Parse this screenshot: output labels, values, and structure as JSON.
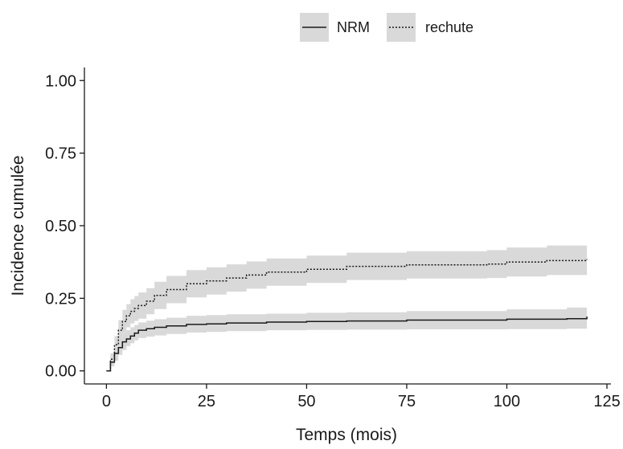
{
  "chart_data": {
    "type": "line",
    "title": "",
    "xlabel": "Temps (mois)",
    "ylabel": "Incidence cumulée",
    "xlim": [
      -5.5,
      126
    ],
    "ylim": [
      -0.045,
      1.045
    ],
    "x_ticks": [
      0,
      25,
      50,
      75,
      100,
      125
    ],
    "x_tick_labels": [
      "0",
      "25",
      "50",
      "75",
      "100",
      "125"
    ],
    "y_ticks": [
      0,
      0.25,
      0.5,
      0.75,
      1.0
    ],
    "y_tick_labels": [
      "0.00",
      "0.25",
      "0.50",
      "0.75",
      "1.00"
    ],
    "grid": false,
    "legend_position": "top",
    "band_color": "#d9d9d9",
    "line_color": "#1a1a1a",
    "series": [
      {
        "name": "NRM",
        "line_style": "solid",
        "x": [
          0,
          1,
          2,
          3,
          4,
          5,
          6,
          7,
          8,
          10,
          12,
          15,
          20,
          25,
          30,
          40,
          50,
          60,
          75,
          100,
          115,
          120
        ],
        "y": [
          0.0,
          0.03,
          0.06,
          0.08,
          0.1,
          0.11,
          0.12,
          0.13,
          0.14,
          0.145,
          0.15,
          0.155,
          0.16,
          0.162,
          0.165,
          0.168,
          0.17,
          0.172,
          0.175,
          0.178,
          0.18,
          0.187
        ],
        "lower": [
          0.0,
          0.015,
          0.035,
          0.055,
          0.072,
          0.085,
          0.095,
          0.105,
          0.113,
          0.118,
          0.122,
          0.127,
          0.132,
          0.134,
          0.137,
          0.14,
          0.141,
          0.142,
          0.143,
          0.144,
          0.145,
          0.15
        ],
        "upper": [
          0.0,
          0.045,
          0.085,
          0.11,
          0.13,
          0.14,
          0.15,
          0.158,
          0.167,
          0.173,
          0.178,
          0.183,
          0.19,
          0.192,
          0.195,
          0.197,
          0.2,
          0.202,
          0.206,
          0.212,
          0.218,
          0.232
        ]
      },
      {
        "name": "rechute",
        "line_style": "dotted",
        "x": [
          0,
          1,
          2,
          3,
          4,
          5,
          6,
          7,
          8,
          10,
          12,
          15,
          20,
          25,
          30,
          35,
          40,
          50,
          60,
          75,
          95,
          100,
          110,
          120
        ],
        "y": [
          0.0,
          0.04,
          0.09,
          0.14,
          0.17,
          0.19,
          0.205,
          0.215,
          0.225,
          0.24,
          0.26,
          0.28,
          0.3,
          0.31,
          0.32,
          0.33,
          0.34,
          0.35,
          0.36,
          0.365,
          0.368,
          0.375,
          0.38,
          0.385
        ],
        "lower": [
          0.0,
          0.02,
          0.06,
          0.105,
          0.13,
          0.15,
          0.163,
          0.172,
          0.18,
          0.195,
          0.213,
          0.233,
          0.253,
          0.263,
          0.273,
          0.283,
          0.293,
          0.303,
          0.313,
          0.318,
          0.32,
          0.325,
          0.33,
          0.335
        ],
        "upper": [
          0.0,
          0.06,
          0.12,
          0.175,
          0.21,
          0.23,
          0.247,
          0.258,
          0.27,
          0.285,
          0.307,
          0.327,
          0.347,
          0.357,
          0.367,
          0.377,
          0.387,
          0.397,
          0.407,
          0.412,
          0.416,
          0.425,
          0.432,
          0.437
        ]
      }
    ]
  }
}
